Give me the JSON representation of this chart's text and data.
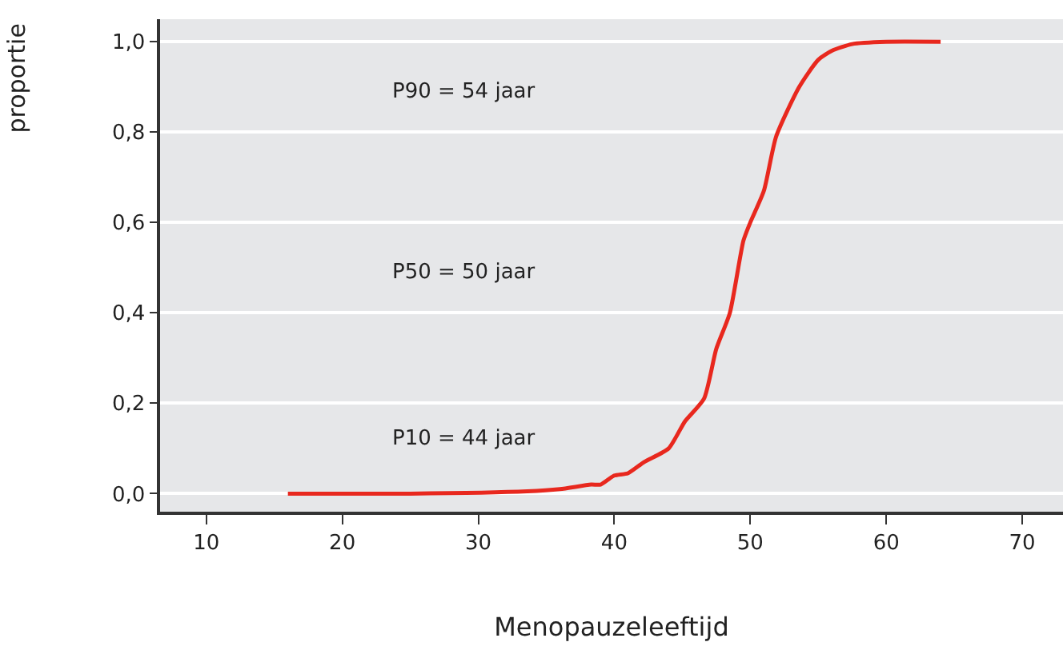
{
  "chart_data": {
    "type": "line",
    "xlabel": "Menopauzeleeftijd",
    "ylabel": "proportie",
    "x": [
      16,
      25,
      33.6,
      36,
      38.3,
      39,
      40,
      41,
      42.2,
      44,
      45.2,
      46.6,
      47.5,
      48.5,
      49.5,
      50,
      51,
      51.9,
      53.6,
      55,
      56,
      57.5,
      60,
      64
    ],
    "series": [
      {
        "color": "#e8281e",
        "values": [
          0,
          0,
          0.005,
          0.01,
          0.02,
          0.02,
          0.04,
          0.045,
          0.07,
          0.1,
          0.16,
          0.21,
          0.32,
          0.4,
          0.56,
          0.6,
          0.67,
          0.79,
          0.9,
          0.96,
          0.98,
          0.995,
          1,
          1
        ]
      }
    ],
    "xlim": [
      6.6,
      73
    ],
    "xticks": [
      10,
      20,
      30,
      40,
      50,
      60,
      70
    ],
    "ylim": [
      -0.04,
      1.05
    ],
    "yticks": [
      {
        "value": 0,
        "label": "0,0"
      },
      {
        "value": 0.2,
        "label": "0,2"
      },
      {
        "value": 0.4,
        "label": "0,4"
      },
      {
        "value": 0.6,
        "label": "0,6"
      },
      {
        "value": 0.8,
        "label": "0,8"
      },
      {
        "value": 1,
        "label": "1,0"
      }
    ],
    "grid": "y",
    "marker": "none",
    "line_style": "solid",
    "annotations": [
      "P90 = 54 jaar",
      "P50 = 50 jaar",
      "P10 = 44 jaar"
    ]
  }
}
